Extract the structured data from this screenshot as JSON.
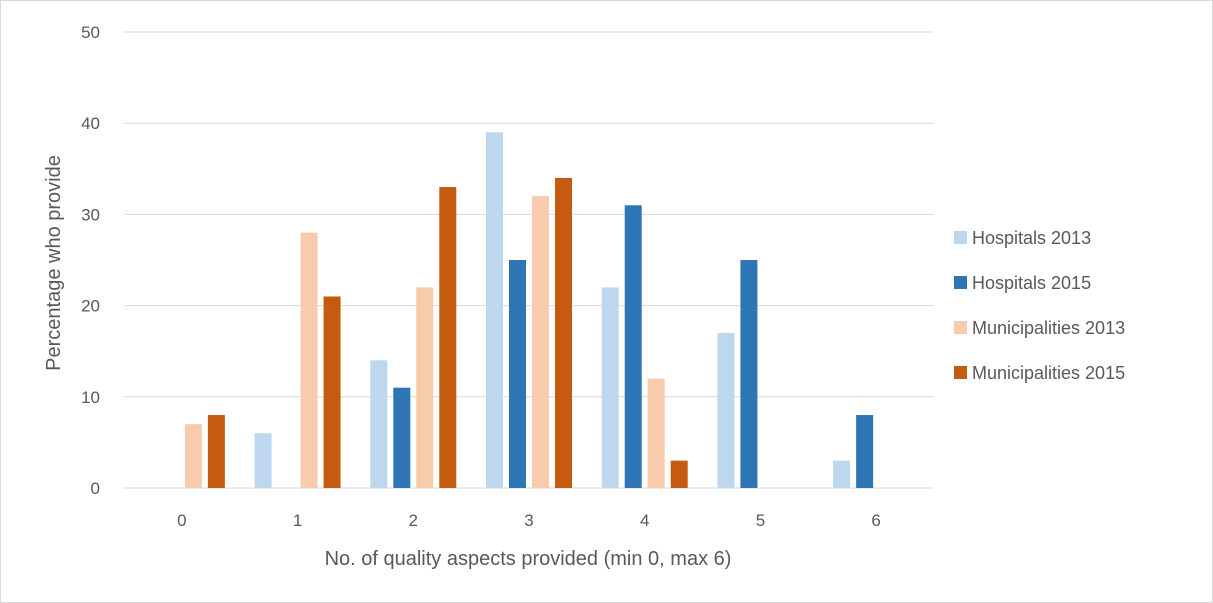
{
  "chart_data": {
    "type": "bar",
    "title": "",
    "xlabel": "No. of quality aspects provided (min 0, max 6)",
    "ylabel": "Percentage who provide",
    "ylim": [
      0,
      50
    ],
    "yticks": [
      "0",
      "10",
      "20",
      "30",
      "40",
      "50"
    ],
    "categories": [
      "0",
      "1",
      "2",
      "3",
      "4",
      "5",
      "6"
    ],
    "grid": true,
    "legend_position": "right",
    "series": [
      {
        "name": "Hospitals 2013",
        "color": "#bdd7ee",
        "values": [
          0,
          6,
          14,
          39,
          22,
          17,
          3
        ]
      },
      {
        "name": "Hospitals 2015",
        "color": "#2e75b6",
        "values": [
          0,
          0,
          11,
          25,
          31,
          25,
          8
        ]
      },
      {
        "name": "Municipalities 2013",
        "color": "#f8cbad",
        "values": [
          7,
          28,
          22,
          32,
          12,
          0,
          0
        ]
      },
      {
        "name": "Municipalities 2015",
        "color": "#c55a11",
        "values": [
          8,
          21,
          33,
          34,
          3,
          0,
          0
        ]
      }
    ]
  }
}
